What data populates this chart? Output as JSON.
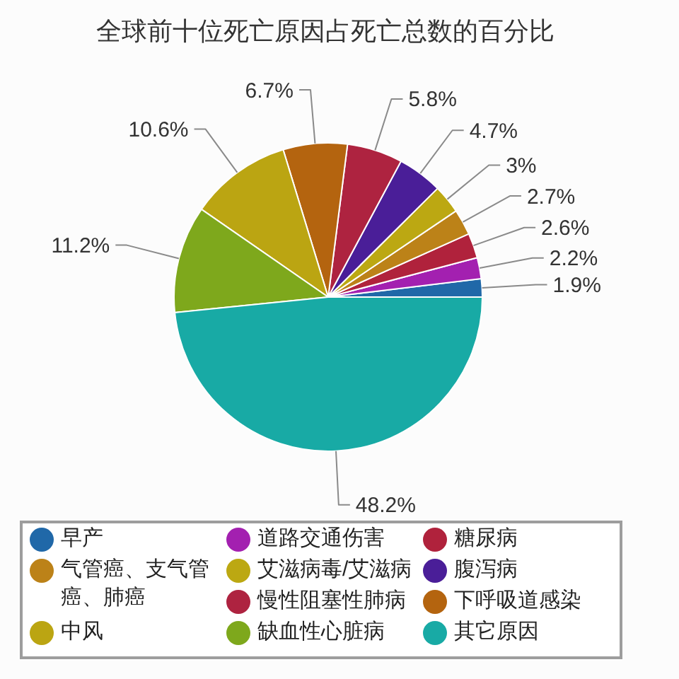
{
  "chart_data": {
    "type": "pie",
    "title": "全球前十位死亡原因占死亡总数的百分比",
    "categories": [
      "早产",
      "道路交通伤害",
      "糖尿病",
      "气管癌、支气管癌、肺癌",
      "艾滋病毒/艾滋病",
      "腹泻病",
      "慢性阻塞性肺病",
      "下呼吸道感染",
      "中风",
      "缺血性心脏病",
      "其它原因"
    ],
    "values": [
      1.9,
      2.2,
      2.6,
      2.7,
      3,
      4.7,
      5.8,
      6.7,
      10.6,
      11.2,
      48.2
    ],
    "colors": [
      "#2068a8",
      "#a320b0",
      "#b0223c",
      "#bc8218",
      "#bca812",
      "#4a1e98",
      "#ae2340",
      "#b4640f",
      "#bba512",
      "#7ea81c",
      "#18aaa5"
    ],
    "value_labels": [
      "1.9%",
      "2.2%",
      "2.6%",
      "2.7%",
      "3%",
      "4.7%",
      "5.8%",
      "6.7%",
      "10.6%",
      "11.2%",
      "48.2%"
    ],
    "legend": "bottom"
  }
}
